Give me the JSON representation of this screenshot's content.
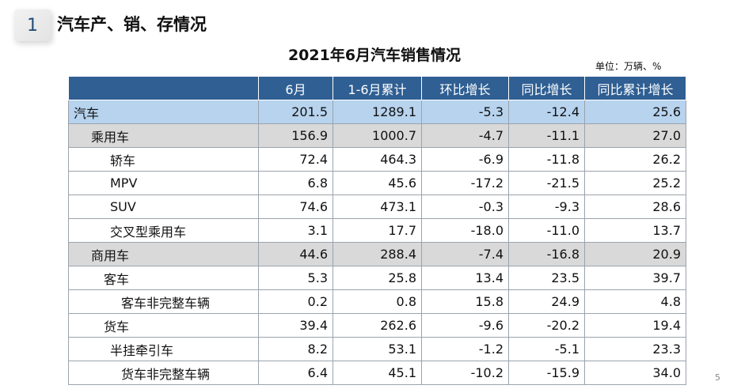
{
  "section": {
    "number": "1",
    "title": "汽车产、销、存情况"
  },
  "table_title": "2021年6月汽车销售情况",
  "unit": "单位：万辆、%",
  "headers": [
    "",
    "6月",
    "1-6月累计",
    "环比增长",
    "同比增长",
    "同比累计增长"
  ],
  "rows": [
    {
      "name": "汽车",
      "level": 0,
      "values": [
        "201.5",
        "1289.1",
        "-5.3",
        "-12.4",
        "25.6"
      ]
    },
    {
      "name": "乘用车",
      "level": 1,
      "values": [
        "156.9",
        "1000.7",
        "-4.7",
        "-11.1",
        "27.0"
      ]
    },
    {
      "name": "轿车",
      "level": 2,
      "values": [
        "72.4",
        "464.3",
        "-6.9",
        "-11.8",
        "26.2"
      ]
    },
    {
      "name": "MPV",
      "level": 2,
      "values": [
        "6.8",
        "45.6",
        "-17.2",
        "-21.5",
        "25.2"
      ]
    },
    {
      "name": "SUV",
      "level": 2,
      "values": [
        "74.6",
        "473.1",
        "-0.3",
        "-9.3",
        "28.6"
      ]
    },
    {
      "name": "交叉型乘用车",
      "level": 2,
      "values": [
        "3.1",
        "17.7",
        "-18.0",
        "-11.0",
        "13.7"
      ]
    },
    {
      "name": "商用车",
      "level": 1,
      "values": [
        "44.6",
        "288.4",
        "-7.4",
        "-16.8",
        "20.9"
      ]
    },
    {
      "name": "客车",
      "level": "sub",
      "values": [
        "5.3",
        "25.8",
        "13.4",
        "23.5",
        "39.7"
      ]
    },
    {
      "name": "客车非完整车辆",
      "level": 3,
      "values": [
        "0.2",
        "0.8",
        "15.8",
        "24.9",
        "4.8"
      ]
    },
    {
      "name": "货车",
      "level": "sub",
      "values": [
        "39.4",
        "262.6",
        "-9.6",
        "-20.2",
        "19.4"
      ]
    },
    {
      "name": "半挂牵引车",
      "level": 2,
      "values": [
        "8.2",
        "53.1",
        "-1.2",
        "-5.1",
        "23.3"
      ]
    },
    {
      "name": "货车非完整车辆",
      "level": 3,
      "values": [
        "6.4",
        "45.1",
        "-10.2",
        "-15.9",
        "34.0"
      ]
    }
  ],
  "page_number": "5"
}
